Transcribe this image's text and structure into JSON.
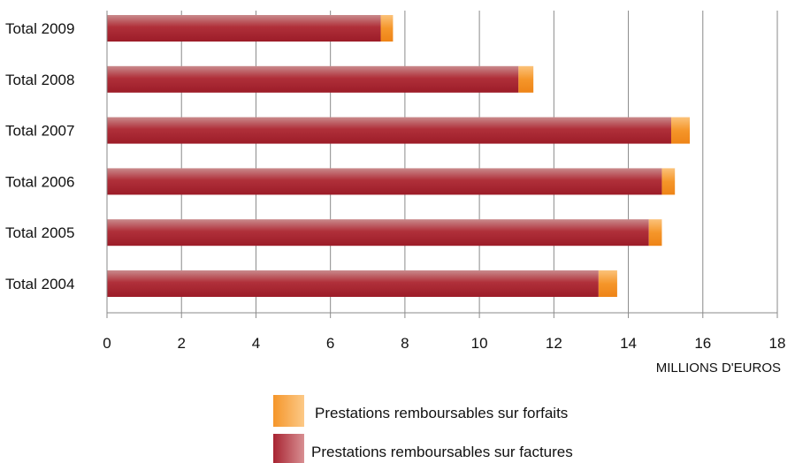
{
  "chart_data": {
    "type": "bar",
    "orientation": "horizontal",
    "stacked": true,
    "categories": [
      "Total 2009",
      "Total 2008",
      "Total 2007",
      "Total 2006",
      "Total 2005",
      "Total 2004"
    ],
    "series": [
      {
        "name": "Prestations remboursables sur factures",
        "color": "#b0303a",
        "values": [
          7.35,
          11.05,
          15.15,
          14.9,
          14.55,
          13.2
        ]
      },
      {
        "name": "Prestations remboursables sur forfaits",
        "color": "#f5962a",
        "values": [
          0.33,
          0.4,
          0.5,
          0.35,
          0.35,
          0.5
        ]
      }
    ],
    "x_ticks": [
      "0",
      "2",
      "4",
      "6",
      "8",
      "10",
      "12",
      "14",
      "16",
      "18"
    ],
    "xlim": [
      0,
      18
    ],
    "xlabel": "MILLIONS D'EUROS",
    "grid": "vertical",
    "legend_position": "bottom-right",
    "legend_order": [
      "Prestations remboursables sur forfaits",
      "Prestations remboursables sur factures"
    ]
  }
}
